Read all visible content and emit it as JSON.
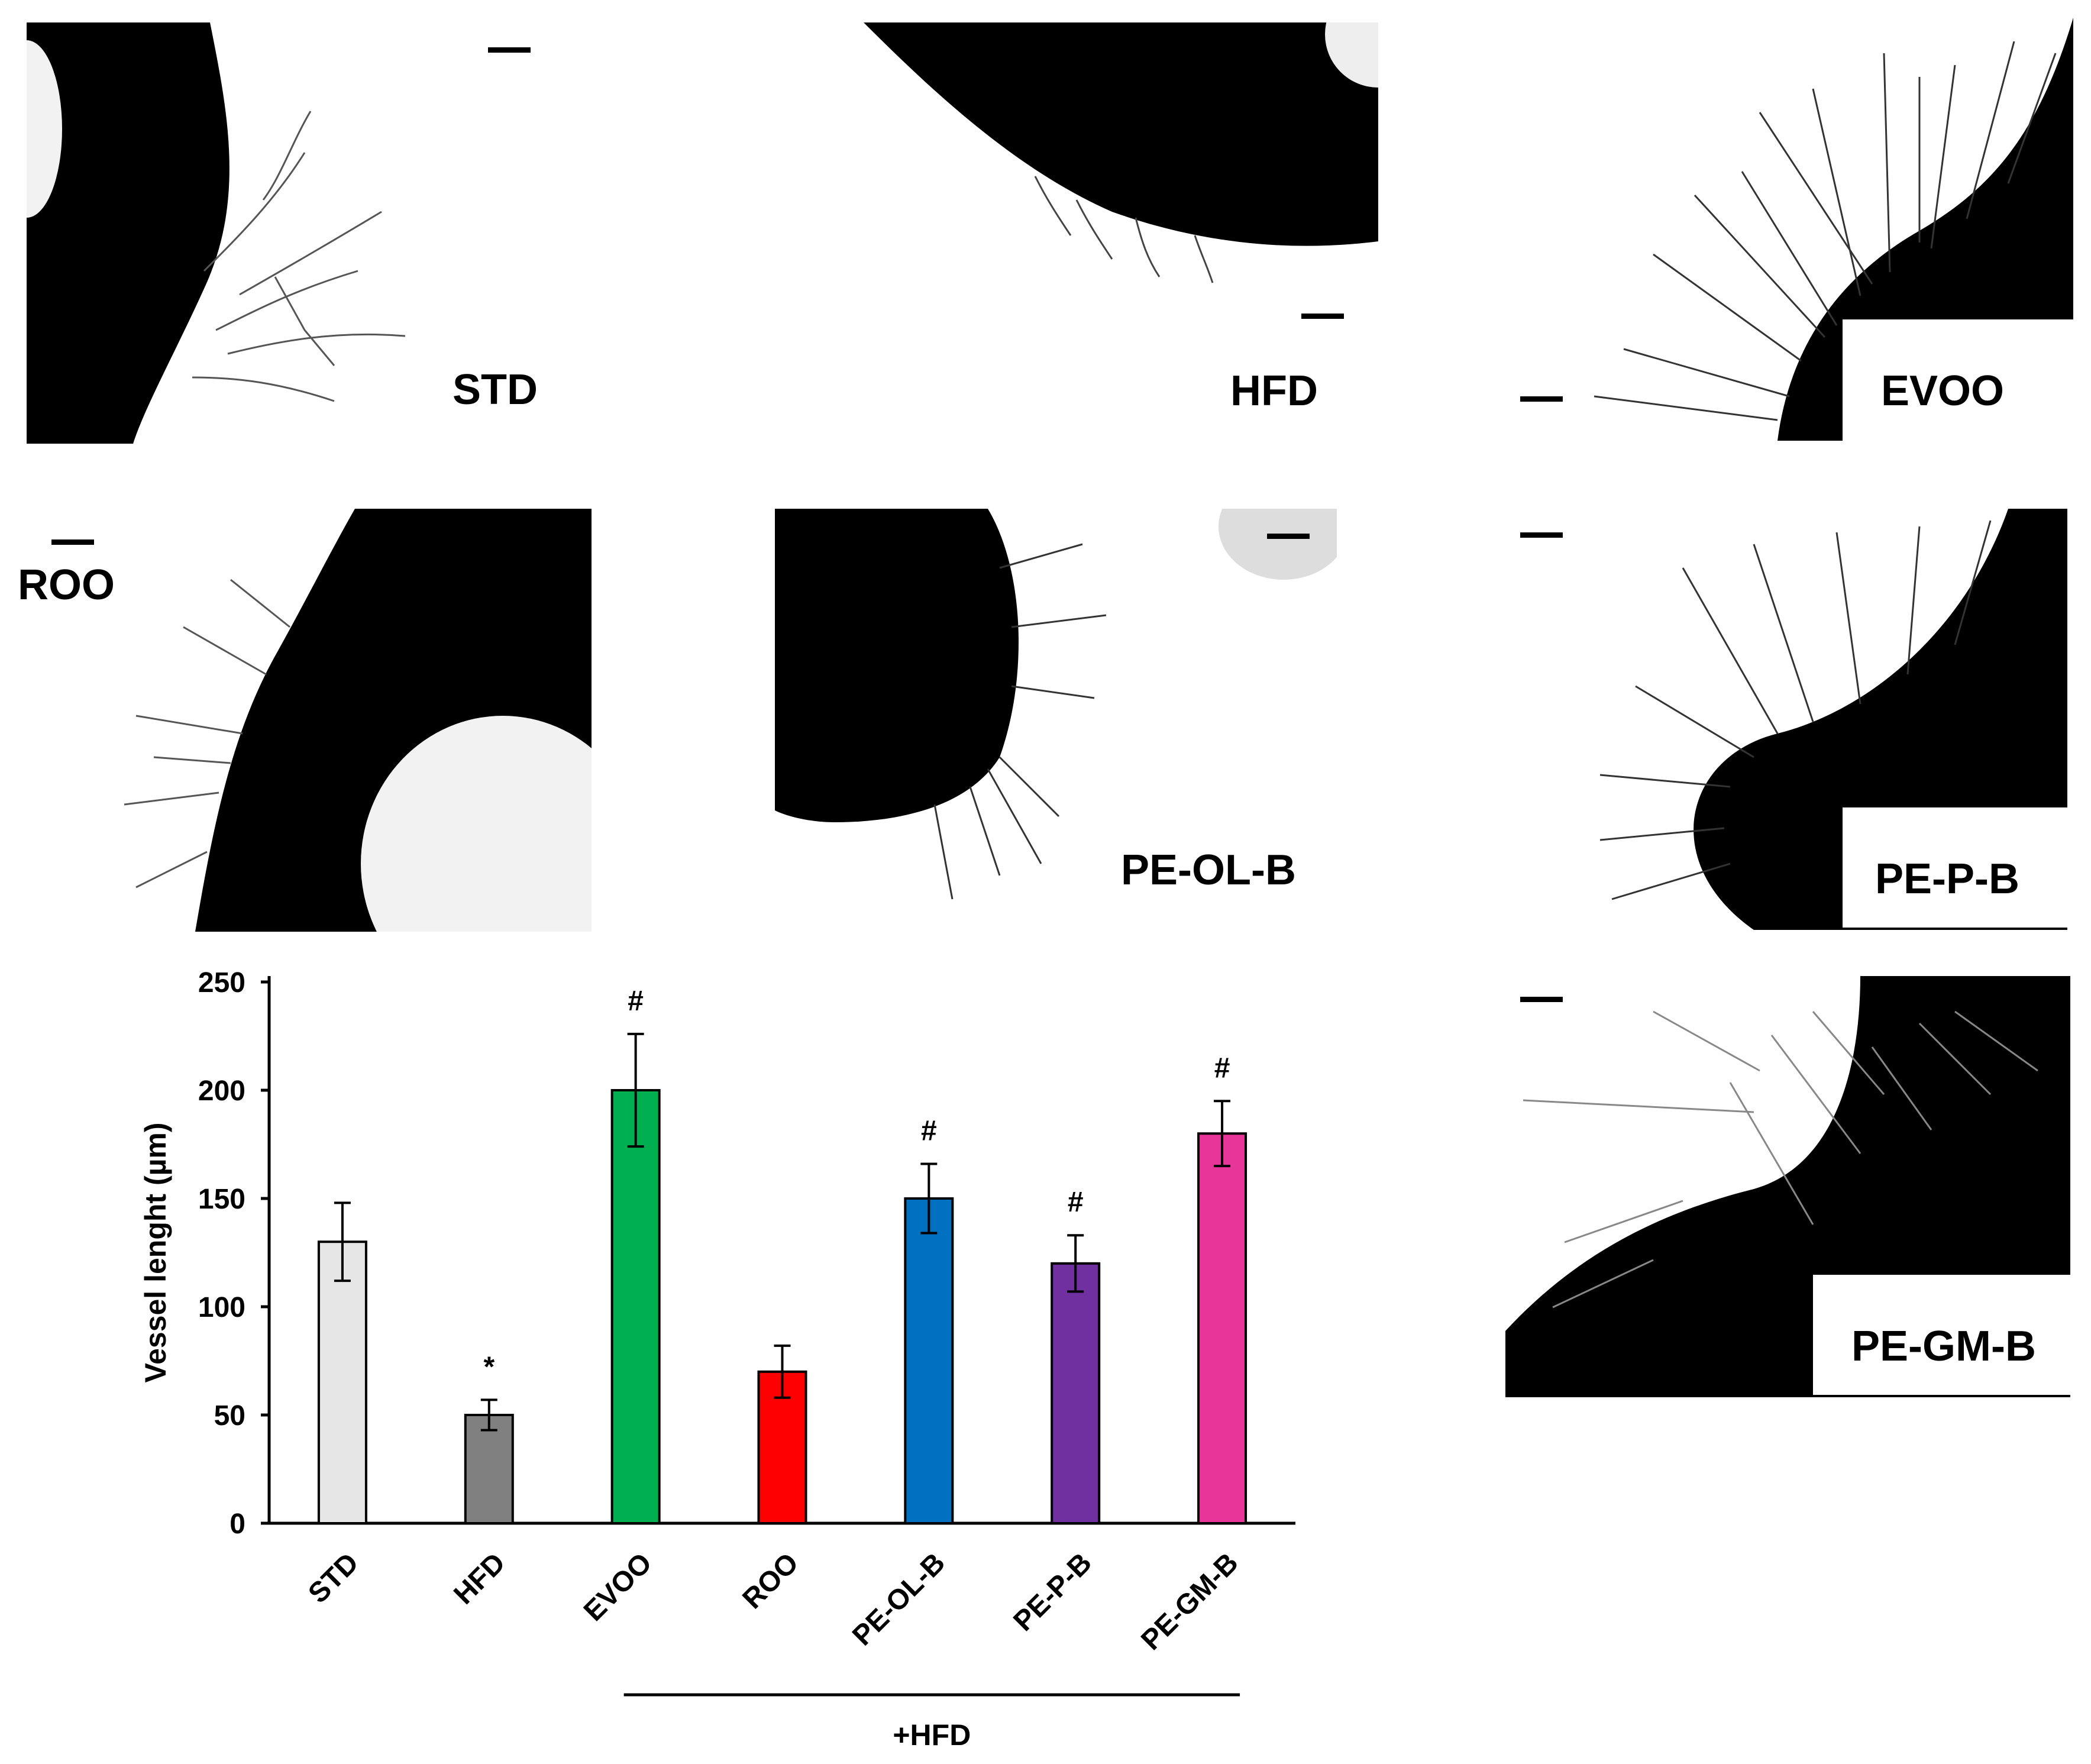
{
  "panels": [
    {
      "id": "std",
      "label": "STD"
    },
    {
      "id": "hfd",
      "label": "HFD"
    },
    {
      "id": "evoo",
      "label": "EVOO"
    },
    {
      "id": "roo",
      "label": "ROO"
    },
    {
      "id": "peolb",
      "label": "PE-OL-B"
    },
    {
      "id": "pepb",
      "label": "PE-P-B"
    },
    {
      "id": "pegmb",
      "label": "PE-GM-B"
    }
  ],
  "colors": {
    "STD": "#e6e6e6",
    "HFD": "#808080",
    "EVOO": "#00b050",
    "ROO": "#ff0000",
    "PE-OL-B": "#0070c0",
    "PE-P-B": "#7030a0",
    "PE-GM-B": "#e8359a"
  },
  "chart_data": {
    "type": "bar",
    "ylabel": "Vessel lenght (µm)",
    "ylim": [
      0,
      250
    ],
    "yticks": [
      0,
      50,
      100,
      150,
      200,
      250
    ],
    "categories": [
      "STD",
      "HFD",
      "EVOO",
      "ROO",
      "PE-OL-B",
      "PE-P-B",
      "PE-GM-B"
    ],
    "values": [
      130,
      50,
      200,
      70,
      150,
      120,
      180
    ],
    "errors": [
      18,
      7,
      26,
      12,
      16,
      13,
      15
    ],
    "annotations": [
      "",
      "*",
      "#",
      "",
      "#",
      "#",
      "#"
    ],
    "group_label": "+HFD",
    "group_members": [
      "EVOO",
      "ROO",
      "PE-OL-B",
      "PE-P-B",
      "PE-GM-B"
    ]
  }
}
